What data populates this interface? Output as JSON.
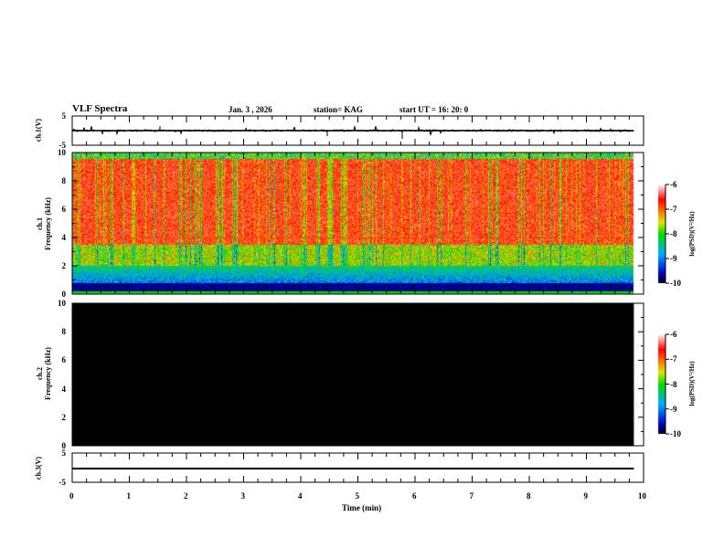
{
  "header": {
    "title": "VLF Spectra",
    "date": "Jan. 3 , 2026",
    "station": "station= KAG",
    "start": "start  UT =   16: 20: 0"
  },
  "chart_data": [
    {
      "type": "line",
      "name": "ch1",
      "ylabel": "ch.1(V)",
      "ylim": [
        -5,
        5
      ],
      "yticks": [
        "5",
        "-5"
      ],
      "xlim": [
        0,
        10
      ],
      "baseline": 0,
      "data_end_min": 9.83
    },
    {
      "type": "heatmap",
      "name": "ch1-spectrogram",
      "ylabel_top": "ch.1",
      "ylabel": "Frequency (kHz)",
      "ylim": [
        0,
        10
      ],
      "yticks": [
        "0",
        "2",
        "4",
        "6",
        "8",
        "10"
      ],
      "colorbar": {
        "label": "log(PSD)(V²/Hz)",
        "range": [
          -10,
          -6
        ],
        "ticks": [
          "-6",
          "-7",
          "-8",
          "-9",
          "-10"
        ]
      }
    },
    {
      "type": "heatmap",
      "name": "ch2-spectrogram",
      "ylabel_top": "ch.2",
      "ylabel": "Frequency (kHz)",
      "ylim": [
        0,
        10
      ],
      "yticks": [
        "0",
        "2",
        "4",
        "6",
        "8",
        "10"
      ],
      "fill": "no signal (black)",
      "colorbar": {
        "label": "log(PSD)(V²/Hz)",
        "range": [
          -10,
          -6
        ],
        "ticks": [
          "-6",
          "-7",
          "-8",
          "-9",
          "-10"
        ]
      }
    },
    {
      "type": "line",
      "name": "ch3",
      "ylabel": "ch.3(V)",
      "ylim": [
        -5,
        5
      ],
      "yticks": [
        "5",
        "-5"
      ],
      "value": 0
    }
  ],
  "xaxis": {
    "label": "Time (min)",
    "ticks": [
      "0",
      "1",
      "2",
      "3",
      "4",
      "5",
      "6",
      "7",
      "8",
      "9",
      "10"
    ]
  }
}
